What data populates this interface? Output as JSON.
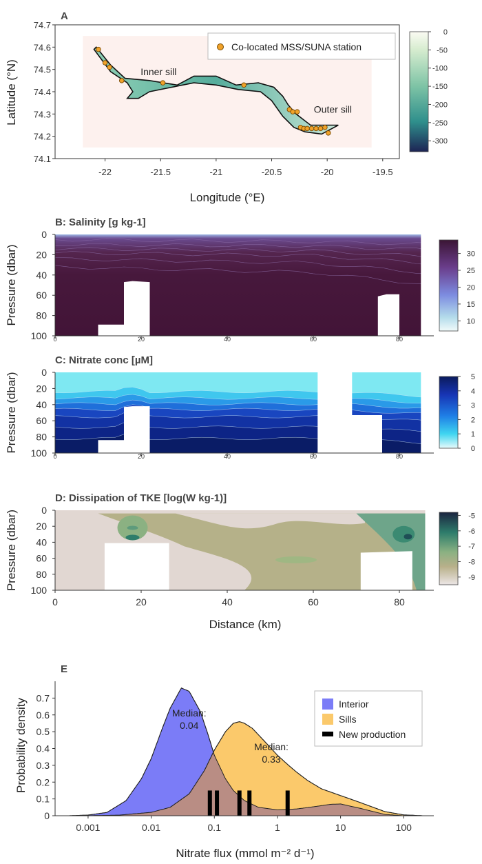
{
  "chart_data": [
    {
      "panel": "A",
      "type": "heatmap",
      "xlabel": "Longitude (°E)",
      "ylabel": "Latitude (°N)",
      "xticks": [
        "-22",
        "-21.5",
        "-21",
        "-20.5",
        "-20",
        "-19.5"
      ],
      "xtick_values": [
        -22,
        -21.5,
        -21,
        -20.5,
        -20,
        -19.5
      ],
      "yticks": [
        "74.1",
        "74.2",
        "74.3",
        "74.4",
        "74.5",
        "74.6",
        "74.7"
      ],
      "ytick_values": [
        74.1,
        74.2,
        74.3,
        74.4,
        74.5,
        74.6,
        74.7
      ],
      "xlim": [
        -22.45,
        -19.35
      ],
      "ylim": [
        74.1,
        74.7
      ],
      "legend": "Co-located MSS/SUNA station",
      "annotations": [
        {
          "text": "Inner sill",
          "x": -21.68,
          "y": 74.475
        },
        {
          "text": "Outer sill",
          "x": -20.12,
          "y": 74.305
        }
      ],
      "colorbar": {
        "ticks": [
          "0",
          "-50",
          "-100",
          "-150",
          "-200",
          "-250",
          "-300"
        ],
        "tick_values": [
          0,
          -50,
          -100,
          -150,
          -200,
          -250,
          -300
        ],
        "range": [
          -330,
          0
        ]
      },
      "coastline": [
        [
          -22.08,
          74.6
        ],
        [
          -21.95,
          74.52
        ],
        [
          -21.82,
          74.46
        ],
        [
          -21.6,
          74.45
        ],
        [
          -21.35,
          74.43
        ],
        [
          -21.2,
          74.47
        ],
        [
          -21.0,
          74.47
        ],
        [
          -20.82,
          74.43
        ],
        [
          -20.62,
          74.44
        ],
        [
          -20.48,
          74.42
        ],
        [
          -20.4,
          74.38
        ],
        [
          -20.35,
          74.34
        ],
        [
          -20.28,
          74.3
        ],
        [
          -20.15,
          74.25
        ],
        [
          -19.9,
          74.25
        ],
        [
          -20.05,
          74.21
        ],
        [
          -20.2,
          74.22
        ],
        [
          -20.3,
          74.24
        ],
        [
          -20.4,
          74.29
        ],
        [
          -20.5,
          74.36
        ],
        [
          -20.6,
          74.4
        ],
        [
          -20.8,
          74.41
        ],
        [
          -21.0,
          74.43
        ],
        [
          -21.2,
          74.44
        ],
        [
          -21.4,
          74.42
        ],
        [
          -21.6,
          74.4
        ],
        [
          -21.7,
          74.37
        ],
        [
          -21.8,
          74.37
        ],
        [
          -21.75,
          74.4
        ],
        [
          -21.8,
          74.44
        ],
        [
          -21.95,
          74.49
        ],
        [
          -22.1,
          74.59
        ]
      ],
      "stations": [
        [
          -22.06,
          74.59
        ],
        [
          -22.0,
          74.53
        ],
        [
          -21.96,
          74.51
        ],
        [
          -21.85,
          74.45
        ],
        [
          -21.48,
          74.44
        ],
        [
          -20.75,
          74.43
        ],
        [
          -20.34,
          74.32
        ],
        [
          -20.31,
          74.31
        ],
        [
          -20.27,
          74.31
        ],
        [
          -20.24,
          74.24
        ],
        [
          -20.21,
          74.235
        ],
        [
          -20.18,
          74.235
        ],
        [
          -20.14,
          74.235
        ],
        [
          -20.1,
          74.235
        ],
        [
          -20.06,
          74.235
        ],
        [
          -20.02,
          74.24
        ],
        [
          -19.99,
          74.215
        ]
      ]
    },
    {
      "panel": "B",
      "type": "heatmap",
      "title": "B: Salinity [g kg-1]",
      "ylabel": "Pressure (dbar)",
      "xlim": [
        0,
        88
      ],
      "ylim": [
        100,
        0
      ],
      "yticks": [
        "0",
        "20",
        "40",
        "60",
        "80",
        "100"
      ],
      "ytick_values": [
        0,
        20,
        40,
        60,
        80,
        100
      ],
      "xticks": [
        "0",
        "20",
        "40",
        "60",
        "80"
      ],
      "xtick_values": [
        0,
        20,
        40,
        60,
        80
      ],
      "colorbar": {
        "ticks": [
          "30",
          "25",
          "20",
          "15",
          "10"
        ],
        "tick_values": [
          30,
          25,
          20,
          15,
          10
        ],
        "range": [
          7,
          34
        ]
      },
      "masks": [
        [
          [
            10,
            100
          ],
          [
            10,
            89
          ],
          [
            16,
            89
          ],
          [
            16,
            47
          ],
          [
            18,
            46
          ],
          [
            22,
            47
          ],
          [
            22,
            100
          ]
        ],
        [
          [
            75,
            100
          ],
          [
            75,
            61
          ],
          [
            77,
            59
          ],
          [
            80,
            59
          ],
          [
            80,
            100
          ]
        ],
        [
          [
            85,
            100
          ],
          [
            85,
            0
          ],
          [
            88,
            0
          ],
          [
            88,
            100
          ]
        ]
      ]
    },
    {
      "panel": "C",
      "type": "heatmap",
      "title": "C: Nitrate conc [µM]",
      "ylabel": "Pressure (dbar)",
      "xlim": [
        0,
        88
      ],
      "ylim": [
        100,
        0
      ],
      "yticks": [
        "0",
        "20",
        "40",
        "60",
        "80",
        "100"
      ],
      "ytick_values": [
        0,
        20,
        40,
        60,
        80,
        100
      ],
      "xticks": [
        "0",
        "20",
        "40",
        "60",
        "80"
      ],
      "xtick_values": [
        0,
        20,
        40,
        60,
        80
      ],
      "colorbar": {
        "ticks": [
          "5",
          "4",
          "3",
          "2",
          "1",
          "0"
        ],
        "tick_values": [
          5,
          4,
          3,
          2,
          1,
          0
        ],
        "range": [
          0,
          5
        ]
      },
      "masks": [
        [
          [
            10,
            100
          ],
          [
            10,
            84
          ],
          [
            16,
            84
          ],
          [
            16,
            43
          ],
          [
            18,
            42
          ],
          [
            22,
            42
          ],
          [
            22,
            100
          ]
        ],
        [
          [
            61,
            100
          ],
          [
            61,
            0
          ],
          [
            69,
            0
          ],
          [
            69,
            53
          ],
          [
            76,
            53
          ],
          [
            76,
            100
          ]
        ],
        [
          [
            85,
            100
          ],
          [
            85,
            0
          ],
          [
            88,
            0
          ],
          [
            88,
            100
          ]
        ]
      ]
    },
    {
      "panel": "D",
      "type": "heatmap",
      "title": "D: Dissipation of TKE [log(W kg-1)]",
      "ylabel": "Pressure (dbar)",
      "xlabel": "Distance (km)",
      "xlim": [
        0,
        88
      ],
      "ylim": [
        100,
        0
      ],
      "yticks": [
        "0",
        "20",
        "40",
        "60",
        "80",
        "100"
      ],
      "ytick_values": [
        0,
        20,
        40,
        60,
        80,
        100
      ],
      "xticks": [
        "0",
        "20",
        "40",
        "60",
        "80"
      ],
      "xtick_values": [
        0,
        20,
        40,
        60,
        80
      ],
      "colorbar": {
        "ticks": [
          "-5",
          "-6",
          "-7",
          "-8",
          "-9"
        ],
        "tick_values": [
          -5,
          -6,
          -7,
          -8,
          -9
        ],
        "range": [
          -9.5,
          -4.8
        ]
      },
      "masks": [
        [
          [
            11.5,
            100
          ],
          [
            11.5,
            41
          ],
          [
            26.5,
            41
          ],
          [
            26.5,
            100
          ]
        ],
        [
          [
            71,
            100
          ],
          [
            71,
            53
          ],
          [
            83,
            51
          ],
          [
            83,
            100
          ]
        ],
        [
          [
            86,
            100
          ],
          [
            86,
            0
          ],
          [
            88,
            0
          ],
          [
            88,
            100
          ]
        ]
      ]
    },
    {
      "panel": "E",
      "type": "area",
      "xlabel": "Nitrate flux (mmol m⁻² d⁻¹)",
      "ylabel": "Probability density",
      "xscale": "log",
      "xlim": [
        0.0003,
        300
      ],
      "ylim": [
        0,
        0.8
      ],
      "xticks": [
        "0.001",
        "0.01",
        "0.1",
        "1",
        "10",
        "100"
      ],
      "xtick_values": [
        0.001,
        0.01,
        0.1,
        1,
        10,
        100
      ],
      "yticks": [
        "0",
        "0.1",
        "0.2",
        "0.3",
        "0.4",
        "0.5",
        "0.6",
        "0.7"
      ],
      "ytick_values": [
        0,
        0.1,
        0.2,
        0.3,
        0.4,
        0.5,
        0.6,
        0.7
      ],
      "series": [
        {
          "name": "Interior",
          "color": "#7b7cf7",
          "x": [
            0.0005,
            0.001,
            0.002,
            0.004,
            0.007,
            0.01,
            0.015,
            0.02,
            0.03,
            0.04,
            0.06,
            0.08,
            0.1,
            0.15,
            0.2,
            0.3,
            0.5,
            1,
            2,
            4,
            7,
            10,
            20,
            50,
            100
          ],
          "y": [
            0,
            0.004,
            0.02,
            0.09,
            0.22,
            0.34,
            0.52,
            0.64,
            0.76,
            0.74,
            0.62,
            0.48,
            0.36,
            0.22,
            0.15,
            0.09,
            0.05,
            0.035,
            0.04,
            0.055,
            0.068,
            0.07,
            0.045,
            0.008,
            0
          ]
        },
        {
          "name": "Sills",
          "color": "#fbc96b",
          "x": [
            0.001,
            0.003,
            0.01,
            0.02,
            0.04,
            0.07,
            0.1,
            0.15,
            0.2,
            0.25,
            0.3,
            0.4,
            0.6,
            1,
            1.5,
            2,
            3,
            5,
            10,
            20,
            50,
            100,
            200
          ],
          "y": [
            0,
            0.003,
            0.02,
            0.05,
            0.13,
            0.27,
            0.39,
            0.5,
            0.55,
            0.56,
            0.55,
            0.52,
            0.45,
            0.36,
            0.3,
            0.26,
            0.21,
            0.16,
            0.12,
            0.08,
            0.025,
            0.005,
            0
          ]
        }
      ],
      "medians": [
        {
          "label": "Median:",
          "value": "0.04",
          "x": 0.04,
          "y": 0.59
        },
        {
          "label": "Median:",
          "value": "0.33",
          "x": 0.8,
          "y": 0.39
        }
      ],
      "new_production": {
        "name": "New production",
        "x": [
          0.085,
          0.11,
          0.25,
          0.36,
          1.45
        ],
        "height": 0.15
      },
      "legend_position": "top-right"
    }
  ]
}
